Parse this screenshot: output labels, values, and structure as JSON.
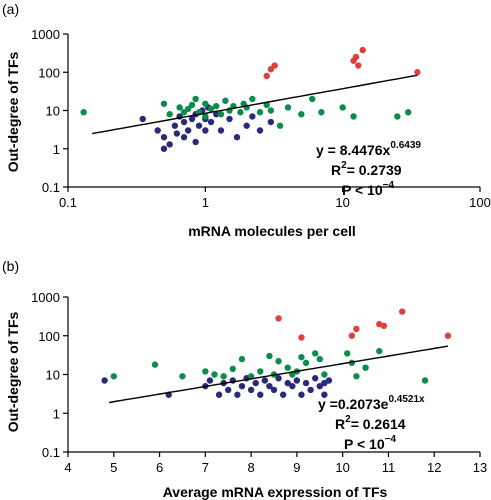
{
  "colors": {
    "navy": "#2a2a78",
    "green": "#0a8c4a",
    "red": "#e0403a",
    "axis": "#000000",
    "trend": "#000000"
  },
  "chart_data": [
    {
      "type": "scatter",
      "panel_label": "(a)",
      "xlabel": "mRNA molecules per cell",
      "ylabel": "Out-degree  of  TFs",
      "xscale": "log",
      "yscale": "log",
      "xlim": [
        0.1,
        100
      ],
      "ylim": [
        0.1,
        1000
      ],
      "xticks": [
        "0.1",
        "1",
        "10",
        "100"
      ],
      "yticks": [
        "0.1",
        "1",
        "10",
        "100",
        "1000"
      ],
      "grid": false,
      "equation": {
        "main": "y = 8.4476x",
        "exp": "0.6439"
      },
      "r2": {
        "main": "R",
        "sup": "2",
        "rest": "= 0.2739"
      },
      "pval": {
        "main": "P < 10",
        "exp": "−4"
      },
      "trend": {
        "form": "power",
        "a": 8.4476,
        "b": 0.6439,
        "x_range": [
          0.15,
          35
        ]
      },
      "series": [
        {
          "color_key": "navy",
          "points": [
            [
              0.35,
              6
            ],
            [
              0.45,
              3
            ],
            [
              0.5,
              1
            ],
            [
              0.5,
              2
            ],
            [
              0.55,
              1.3
            ],
            [
              0.6,
              4
            ],
            [
              0.62,
              2.5
            ],
            [
              0.65,
              7
            ],
            [
              0.7,
              5
            ],
            [
              0.7,
              2
            ],
            [
              0.75,
              3
            ],
            [
              0.8,
              6
            ],
            [
              0.85,
              8
            ],
            [
              0.85,
              1.5
            ],
            [
              0.9,
              4
            ],
            [
              0.95,
              10
            ],
            [
              1.0,
              3
            ],
            [
              1.0,
              6
            ],
            [
              1.05,
              12
            ],
            [
              1.1,
              5
            ],
            [
              1.2,
              8
            ],
            [
              1.3,
              3
            ],
            [
              1.5,
              6
            ],
            [
              1.7,
              2
            ],
            [
              2.0,
              4
            ],
            [
              2.2,
              7
            ],
            [
              2.5,
              3
            ],
            [
              3.0,
              5
            ]
          ]
        },
        {
          "color_key": "green",
          "points": [
            [
              0.13,
              9
            ],
            [
              0.5,
              15
            ],
            [
              0.55,
              8
            ],
            [
              0.65,
              12
            ],
            [
              0.7,
              9
            ],
            [
              0.75,
              11
            ],
            [
              0.8,
              14
            ],
            [
              0.85,
              20
            ],
            [
              0.9,
              9
            ],
            [
              1.0,
              15
            ],
            [
              1.0,
              7
            ],
            [
              1.1,
              11
            ],
            [
              1.2,
              13
            ],
            [
              1.3,
              8
            ],
            [
              1.4,
              18
            ],
            [
              1.5,
              10
            ],
            [
              1.6,
              13
            ],
            [
              1.8,
              9
            ],
            [
              1.9,
              15
            ],
            [
              2.0,
              12
            ],
            [
              2.2,
              20
            ],
            [
              2.5,
              9
            ],
            [
              2.8,
              14
            ],
            [
              3.0,
              10
            ],
            [
              3.5,
              4
            ],
            [
              4.0,
              12
            ],
            [
              5.0,
              8
            ],
            [
              6.0,
              20
            ],
            [
              7.0,
              9
            ],
            [
              10.0,
              12
            ],
            [
              12.0,
              7
            ],
            [
              25.0,
              7
            ],
            [
              30.0,
              9
            ]
          ]
        },
        {
          "color_key": "red",
          "points": [
            [
              2.8,
              80
            ],
            [
              3.0,
              120
            ],
            [
              3.2,
              150
            ],
            [
              12.0,
              200
            ],
            [
              12.5,
              250
            ],
            [
              13.0,
              150
            ],
            [
              14.0,
              380
            ],
            [
              35.0,
              100
            ]
          ]
        }
      ]
    },
    {
      "type": "scatter",
      "panel_label": "(b)",
      "xlabel": "Average mRNA expression of TFs",
      "ylabel": "Out-degree  of  TFs",
      "xscale": "linear",
      "yscale": "log",
      "xlim": [
        4,
        13
      ],
      "ylim": [
        0.1,
        1000
      ],
      "xticks": [
        "4",
        "5",
        "6",
        "7",
        "8",
        "9",
        "10",
        "11",
        "12",
        "13"
      ],
      "yticks": [
        "0.1",
        "1",
        "10",
        "100",
        "1000"
      ],
      "grid": false,
      "equation": {
        "main": "y =0.2073e",
        "exp": "0.4521x"
      },
      "r2": {
        "main": "R",
        "sup": "2",
        "rest": "= 0.2614"
      },
      "pval": {
        "main": "P < 10",
        "exp": "−4"
      },
      "trend": {
        "form": "exponential",
        "a": 0.2073,
        "b": 0.4521,
        "x_range": [
          4.9,
          12.3
        ]
      },
      "series": [
        {
          "color_key": "navy",
          "points": [
            [
              4.8,
              7
            ],
            [
              6.2,
              3
            ],
            [
              7.0,
              5
            ],
            [
              7.1,
              7
            ],
            [
              7.3,
              3
            ],
            [
              7.4,
              6
            ],
            [
              7.5,
              4
            ],
            [
              7.6,
              7
            ],
            [
              7.7,
              3
            ],
            [
              7.8,
              5
            ],
            [
              7.9,
              8
            ],
            [
              8.0,
              4
            ],
            [
              8.1,
              6
            ],
            [
              8.2,
              3
            ],
            [
              8.3,
              7
            ],
            [
              8.4,
              5
            ],
            [
              8.5,
              4
            ],
            [
              8.6,
              8
            ],
            [
              8.7,
              3
            ],
            [
              8.8,
              6
            ],
            [
              8.9,
              5
            ],
            [
              9.0,
              7
            ],
            [
              9.1,
              3
            ],
            [
              9.2,
              6
            ],
            [
              9.3,
              4
            ],
            [
              9.4,
              8
            ],
            [
              9.5,
              5
            ],
            [
              9.6,
              6
            ],
            [
              9.6,
              3
            ],
            [
              9.7,
              7
            ]
          ]
        },
        {
          "color_key": "green",
          "points": [
            [
              5.0,
              9
            ],
            [
              5.9,
              18
            ],
            [
              6.5,
              9
            ],
            [
              7.0,
              12
            ],
            [
              7.2,
              10
            ],
            [
              7.4,
              9
            ],
            [
              7.6,
              14
            ],
            [
              7.8,
              25
            ],
            [
              8.0,
              9
            ],
            [
              8.2,
              12
            ],
            [
              8.4,
              30
            ],
            [
              8.5,
              10
            ],
            [
              8.6,
              22
            ],
            [
              8.8,
              15
            ],
            [
              8.9,
              10
            ],
            [
              9.0,
              12
            ],
            [
              9.1,
              28
            ],
            [
              9.2,
              20
            ],
            [
              9.4,
              35
            ],
            [
              9.5,
              25
            ],
            [
              9.6,
              10
            ],
            [
              10.1,
              35
            ],
            [
              10.2,
              20
            ],
            [
              10.3,
              9
            ],
            [
              10.5,
              15
            ],
            [
              10.8,
              40
            ],
            [
              11.8,
              7
            ]
          ]
        },
        {
          "color_key": "red",
          "points": [
            [
              8.6,
              280
            ],
            [
              9.1,
              90
            ],
            [
              10.2,
              100
            ],
            [
              10.3,
              150
            ],
            [
              10.8,
              200
            ],
            [
              10.9,
              180
            ],
            [
              11.3,
              420
            ],
            [
              12.3,
              100
            ]
          ]
        }
      ]
    }
  ]
}
